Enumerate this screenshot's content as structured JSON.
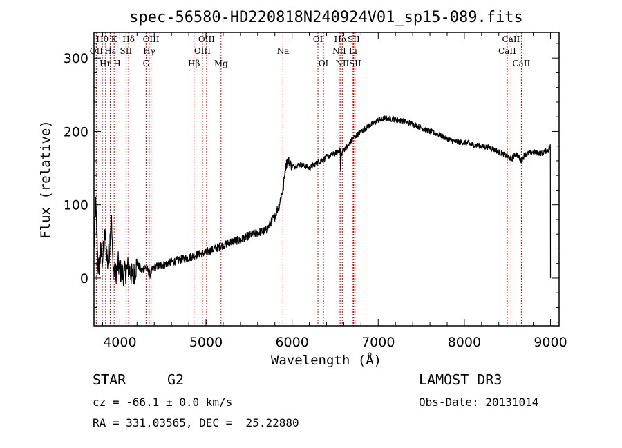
{
  "chart_data": {
    "type": "line",
    "title": "spec-56580-HD220818N240924V01_sp15-089.fits",
    "xlabel": "Wavelength (Å)",
    "ylabel": "Flux (relative)",
    "xlim": [
      3700,
      9100
    ],
    "ylim": [
      -65,
      335
    ],
    "x_ticks": [
      4000,
      5000,
      6000,
      7000,
      8000,
      9000
    ],
    "x_tick_labels": [
      "4000",
      "5000",
      "6000",
      "7000",
      "8000",
      "9000"
    ],
    "y_ticks": [
      0,
      100,
      200,
      300
    ],
    "y_tick_labels": [
      "0",
      "100",
      "200",
      "300"
    ],
    "line_color": "#000000",
    "marker_color": "#cc0000",
    "spectrum": {
      "x": [
        3700,
        3720,
        3750,
        3780,
        3800,
        3830,
        3860,
        3880,
        3900,
        3920,
        3950,
        3980,
        4000,
        4050,
        4100,
        4150,
        4200,
        4250,
        4300,
        4350,
        4400,
        4500,
        4600,
        4700,
        4800,
        4900,
        5000,
        5100,
        5200,
        5300,
        5400,
        5500,
        5600,
        5700,
        5750,
        5800,
        5850,
        5880,
        5900,
        5920,
        5950,
        6000,
        6100,
        6200,
        6300,
        6400,
        6500,
        6560,
        6563,
        6570,
        6600,
        6650,
        6700,
        6800,
        6900,
        7000,
        7100,
        7200,
        7300,
        7400,
        7500,
        7600,
        7700,
        7800,
        7900,
        8000,
        8100,
        8200,
        8300,
        8400,
        8500,
        8550,
        8600,
        8660,
        8700,
        8800,
        8900,
        8980,
        9000
      ],
      "y": [
        40,
        100,
        10,
        35,
        25,
        60,
        20,
        40,
        90,
        15,
        5,
        20,
        10,
        5,
        15,
        0,
        20,
        10,
        15,
        5,
        15,
        18,
        22,
        25,
        28,
        32,
        35,
        40,
        45,
        50,
        52,
        58,
        62,
        65,
        75,
        85,
        100,
        115,
        125,
        150,
        162,
        152,
        155,
        150,
        158,
        165,
        170,
        175,
        135,
        168,
        175,
        180,
        190,
        200,
        208,
        215,
        218,
        216,
        214,
        210,
        205,
        200,
        196,
        190,
        186,
        185,
        182,
        180,
        178,
        172,
        166,
        162,
        170,
        160,
        168,
        172,
        170,
        176,
        180
      ]
    },
    "spectral_lines": [
      {
        "name": "Hθ",
        "wavelength": 3797,
        "row": 0
      },
      {
        "name": "OII",
        "wavelength": 3727,
        "row": 1
      },
      {
        "name": "Hη",
        "wavelength": 3835,
        "row": 2
      },
      {
        "name": "K",
        "wavelength": 3934,
        "row": 0
      },
      {
        "name": "Hε",
        "wavelength": 3889,
        "row": 1
      },
      {
        "name": "H",
        "wavelength": 3969,
        "row": 2
      },
      {
        "name": "Hδ",
        "wavelength": 4102,
        "row": 0
      },
      {
        "name": "SII",
        "wavelength": 4072,
        "row": 1
      },
      {
        "name": "OIII",
        "wavelength": 4363,
        "row": 0
      },
      {
        "name": "Hγ",
        "wavelength": 4341,
        "row": 1
      },
      {
        "name": "G",
        "wavelength": 4305,
        "row": 2
      },
      {
        "name": "OIII",
        "wavelength": 5007,
        "row": 0
      },
      {
        "name": "OIII",
        "wavelength": 4959,
        "row": 1
      },
      {
        "name": "Hβ",
        "wavelength": 4861,
        "row": 2
      },
      {
        "name": "Mg",
        "wavelength": 5175,
        "row": 2
      },
      {
        "name": "Na",
        "wavelength": 5894,
        "row": 1
      },
      {
        "name": "OI",
        "wavelength": 6300,
        "row": 0
      },
      {
        "name": "OI",
        "wavelength": 6364,
        "row": 2
      },
      {
        "name": "Hα",
        "wavelength": 6563,
        "row": 0
      },
      {
        "name": "SII",
        "wavelength": 6716,
        "row": 0
      },
      {
        "name": "NII",
        "wavelength": 6548,
        "row": 1
      },
      {
        "name": "Li",
        "wavelength": 6708,
        "row": 1
      },
      {
        "name": "NII",
        "wavelength": 6583,
        "row": 2
      },
      {
        "name": "SII",
        "wavelength": 6731,
        "row": 2
      },
      {
        "name": "CaII",
        "wavelength": 8542,
        "row": 0
      },
      {
        "name": "CaII",
        "wavelength": 8498,
        "row": 1
      },
      {
        "name": "CaII",
        "wavelength": 8662,
        "row": 2
      }
    ]
  },
  "info": {
    "class_label": "STAR",
    "subclass": "G2",
    "survey": "LAMOST DR3",
    "redshift_text": "cz = -66.1 ± 0.0 km/s",
    "obs_date": "Obs-Date: 20131014",
    "coords": "RA = 331.03565, DEC =  25.22880"
  }
}
